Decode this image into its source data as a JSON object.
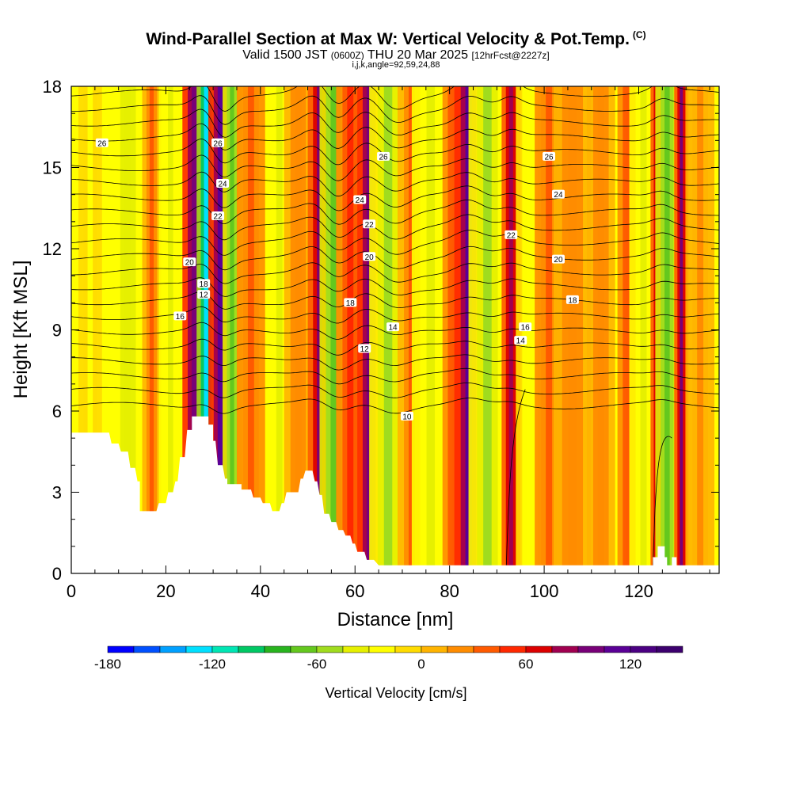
{
  "header": {
    "title": "Wind-Parallel Section at Max W: Vertical Velocity & Pot.Temp.",
    "copyright": "(C)",
    "valid_prefix": "Valid 1500 JST",
    "valid_utc": "(0600Z)",
    "valid_date": "THU 20 Mar 2025",
    "forecast": "[12hrFcst@2227z]",
    "indices": "i,j,k,angle=92,59,24,88"
  },
  "chart_data": {
    "type": "heatmap",
    "xlabel": "Distance [nm]",
    "ylabel": "Height [Kft MSL]",
    "xlim": [
      0,
      137
    ],
    "ylim": [
      0,
      18
    ],
    "x_ticks": [
      0,
      20,
      40,
      60,
      80,
      100,
      120
    ],
    "y_ticks": [
      0,
      3,
      6,
      9,
      12,
      15,
      18
    ],
    "colorbar": {
      "label": "Vertical Velocity [cm/s]",
      "range": [
        -180,
        150
      ],
      "step": 15,
      "tick_values": [
        -180,
        -120,
        -60,
        0,
        60,
        120
      ],
      "colors": [
        "#0000ff",
        "#0050ff",
        "#00a0ff",
        "#00e0ff",
        "#00e6b4",
        "#00c864",
        "#28b41e",
        "#64c81e",
        "#a0dc1e",
        "#e6f000",
        "#ffff00",
        "#ffdc00",
        "#ffb400",
        "#ff8c00",
        "#ff5a00",
        "#ff2800",
        "#dc0000",
        "#a00050",
        "#780078",
        "#5a0096",
        "#4b0082",
        "#3c006e"
      ]
    },
    "vertical_velocity_bands": [
      {
        "x": 4,
        "w": 2.5,
        "value": -20
      },
      {
        "x": 12,
        "w": 3,
        "value": -45
      },
      {
        "x": 17,
        "w": 2,
        "value": 30
      },
      {
        "x": 21,
        "w": 2.5,
        "value": -40
      },
      {
        "x": 26,
        "w": 2.5,
        "value": 100
      },
      {
        "x": 28.5,
        "w": 2,
        "value": -130
      },
      {
        "x": 31.5,
        "w": 2.5,
        "value": 110
      },
      {
        "x": 34,
        "w": 2,
        "value": -75
      },
      {
        "x": 38,
        "w": 3,
        "value": 35
      },
      {
        "x": 44,
        "w": 3,
        "value": -35
      },
      {
        "x": 48,
        "w": 3,
        "value": 25
      },
      {
        "x": 52.5,
        "w": 2.5,
        "value": 95
      },
      {
        "x": 55.5,
        "w": 3,
        "value": -70
      },
      {
        "x": 59,
        "w": 3,
        "value": 45
      },
      {
        "x": 63,
        "w": 2.5,
        "value": 100
      },
      {
        "x": 67,
        "w": 4,
        "value": -60
      },
      {
        "x": 72,
        "w": 3,
        "value": 30
      },
      {
        "x": 76,
        "w": 4,
        "value": -35
      },
      {
        "x": 81,
        "w": 2.5,
        "value": 40
      },
      {
        "x": 84,
        "w": 3,
        "value": 115
      },
      {
        "x": 88,
        "w": 4,
        "value": -55
      },
      {
        "x": 93,
        "w": 2,
        "value": 85
      },
      {
        "x": 97,
        "w": 3,
        "value": -30
      },
      {
        "x": 101,
        "w": 3,
        "value": 35
      },
      {
        "x": 106,
        "w": 4,
        "value": 20
      },
      {
        "x": 112,
        "w": 3,
        "value": 25
      },
      {
        "x": 118,
        "w": 2.5,
        "value": 40
      },
      {
        "x": 121,
        "w": 3,
        "value": -35
      },
      {
        "x": 124,
        "w": 1.5,
        "value": 95
      },
      {
        "x": 126,
        "w": 2.5,
        "value": -75
      },
      {
        "x": 129,
        "w": 1.5,
        "value": 95
      },
      {
        "x": 133,
        "w": 3,
        "value": 15
      }
    ],
    "terrain": [
      [
        0,
        5.2
      ],
      [
        8,
        5.2
      ],
      [
        8.5,
        4.8
      ],
      [
        10,
        4.8
      ],
      [
        10.5,
        4.5
      ],
      [
        12,
        4.5
      ],
      [
        12.5,
        3.9
      ],
      [
        13.5,
        3.9
      ],
      [
        14,
        3.4
      ],
      [
        14.5,
        3.4
      ],
      [
        14.5,
        2.3
      ],
      [
        18,
        2.3
      ],
      [
        18.5,
        2.6
      ],
      [
        20,
        2.6
      ],
      [
        20.5,
        3.0
      ],
      [
        21.5,
        3.0
      ],
      [
        22,
        3.4
      ],
      [
        22.5,
        3.4
      ],
      [
        23,
        4.3
      ],
      [
        24,
        4.3
      ],
      [
        24.5,
        5.3
      ],
      [
        25.5,
        5.3
      ],
      [
        25.5,
        5.8
      ],
      [
        29,
        5.8
      ],
      [
        29,
        5.5
      ],
      [
        30,
        5.5
      ],
      [
        30,
        4.9
      ],
      [
        30.5,
        4.9
      ],
      [
        31,
        4.0
      ],
      [
        32,
        4.0
      ],
      [
        32.5,
        3.5
      ],
      [
        33,
        3.5
      ],
      [
        33,
        3.3
      ],
      [
        36,
        3.3
      ],
      [
        36,
        3.1
      ],
      [
        38,
        3.1
      ],
      [
        38.5,
        2.8
      ],
      [
        40,
        2.8
      ],
      [
        40.5,
        2.6
      ],
      [
        42,
        2.6
      ],
      [
        42.5,
        2.3
      ],
      [
        44,
        2.3
      ],
      [
        44.5,
        2.6
      ],
      [
        45,
        2.6
      ],
      [
        45.5,
        3.0
      ],
      [
        48,
        3.0
      ],
      [
        48.5,
        3.5
      ],
      [
        49,
        3.5
      ],
      [
        49.5,
        3.8
      ],
      [
        51,
        3.8
      ],
      [
        51.5,
        3.4
      ],
      [
        52,
        3.4
      ],
      [
        52.5,
        2.9
      ],
      [
        53,
        2.9
      ],
      [
        53.5,
        2.2
      ],
      [
        54.5,
        2.2
      ],
      [
        55,
        1.9
      ],
      [
        56,
        1.9
      ],
      [
        56.5,
        1.6
      ],
      [
        57.5,
        1.6
      ],
      [
        58,
        1.4
      ],
      [
        59,
        1.4
      ],
      [
        59.5,
        1.1
      ],
      [
        60,
        1.1
      ],
      [
        60.5,
        0.8
      ],
      [
        62,
        0.8
      ],
      [
        62.5,
        0.5
      ],
      [
        64,
        0.5
      ],
      [
        65,
        0.3
      ],
      [
        123,
        0.3
      ],
      [
        123,
        0.6
      ],
      [
        124,
        0.6
      ],
      [
        124,
        1.0
      ],
      [
        125.5,
        1.0
      ],
      [
        125.5,
        0.6
      ],
      [
        126,
        0.6
      ],
      [
        126,
        0.3
      ],
      [
        127,
        0.3
      ],
      [
        127,
        0.6
      ],
      [
        128,
        0.6
      ],
      [
        128,
        0.3
      ],
      [
        137,
        0.3
      ]
    ],
    "potential_temperature_labels": [
      "10",
      "12",
      "12",
      "14",
      "14",
      "16",
      "16",
      "18",
      "18",
      "18",
      "20",
      "20",
      "20",
      "22",
      "22",
      "22",
      "24",
      "24",
      "24",
      "26",
      "26",
      "26",
      "26"
    ]
  }
}
